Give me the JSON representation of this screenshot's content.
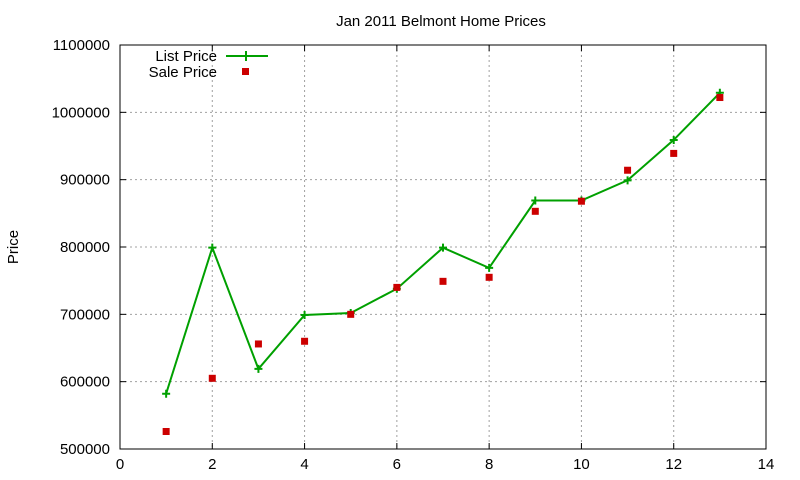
{
  "chart_data": {
    "type": "line",
    "title": "Jan 2011 Belmont Home Prices",
    "xlabel": "",
    "ylabel": "Price",
    "xlim": [
      0,
      14
    ],
    "ylim": [
      500000,
      1100000
    ],
    "xticks": [
      0,
      2,
      4,
      6,
      8,
      10,
      12,
      14
    ],
    "yticks": [
      500000,
      600000,
      700000,
      800000,
      900000,
      1000000,
      1100000
    ],
    "grid": true,
    "legend_position": "top-left",
    "series": [
      {
        "name": "List Price",
        "style": "line-with-plus-markers",
        "color": "#00a000",
        "x": [
          1,
          2,
          3,
          4,
          5,
          6,
          7,
          8,
          9,
          10,
          11,
          12,
          13
        ],
        "y": [
          582000,
          799000,
          619000,
          699000,
          702000,
          738000,
          799000,
          769000,
          869000,
          869000,
          899000,
          959000,
          1029000
        ]
      },
      {
        "name": "Sale Price",
        "style": "square-points",
        "color": "#cc0000",
        "x": [
          1,
          2,
          3,
          4,
          5,
          6,
          7,
          8,
          9,
          10,
          11,
          12,
          13
        ],
        "y": [
          526000,
          605000,
          656000,
          660000,
          700000,
          740000,
          749000,
          755000,
          853000,
          868000,
          914000,
          939000,
          1022000
        ]
      }
    ]
  }
}
